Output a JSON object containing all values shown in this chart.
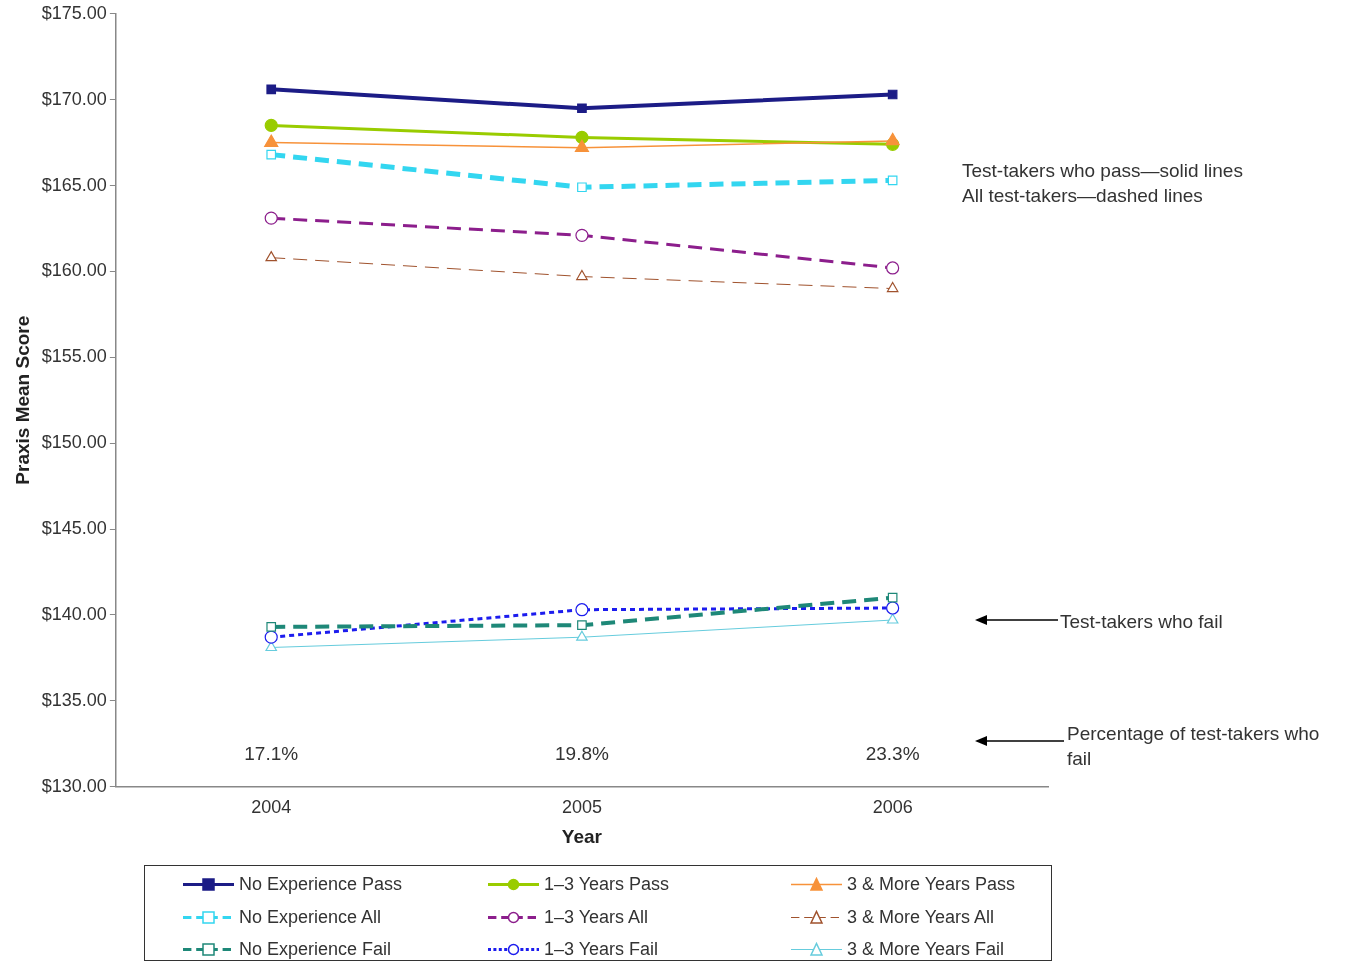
{
  "chart_data": {
    "type": "line",
    "xlabel": "Year",
    "ylabel": "Praxis Mean Score",
    "categories": [
      "2004",
      "2005",
      "2006"
    ],
    "ylim": [
      130,
      175
    ],
    "yticks": [
      {
        "value": 130,
        "label": "$130.00"
      },
      {
        "value": 135,
        "label": "$135.00"
      },
      {
        "value": 140,
        "label": "$140.00"
      },
      {
        "value": 145,
        "label": "$145.00"
      },
      {
        "value": 150,
        "label": "$150.00"
      },
      {
        "value": 155,
        "label": "$155.00"
      },
      {
        "value": 160,
        "label": "$160.00"
      },
      {
        "value": 165,
        "label": "$165.00"
      },
      {
        "value": 170,
        "label": "$170.00"
      },
      {
        "value": 175,
        "label": "$175.00"
      }
    ],
    "grid": false,
    "legend": "bottom",
    "series": [
      {
        "name": "No Experience Pass",
        "color": "#1c1c86",
        "marker": "square",
        "line_style": "solid",
        "values": [
          170.6,
          169.5,
          170.3
        ]
      },
      {
        "name": "1–3 Years Pass",
        "color": "#99cc00",
        "marker": "circle",
        "line_style": "solid",
        "values": [
          168.5,
          167.8,
          167.4
        ]
      },
      {
        "name": "3 & More Years Pass",
        "color": "#f7923a",
        "marker": "triangle",
        "line_style": "solid",
        "values": [
          167.5,
          167.2,
          167.6
        ]
      },
      {
        "name": "No Experience All",
        "color": "#33d6f0",
        "marker": "square",
        "line_style": "dashed",
        "values": [
          166.8,
          164.9,
          165.3
        ]
      },
      {
        "name": "1–3 Years All",
        "color": "#8c1e8c",
        "marker": "circle",
        "line_style": "dashed",
        "values": [
          163.1,
          162.1,
          160.2
        ]
      },
      {
        "name": "3 & More Years All",
        "color": "#a0522d",
        "marker": "triangle",
        "line_style": "dashed",
        "values": [
          160.8,
          159.7,
          159.0
        ]
      },
      {
        "name": "No Experience Fail",
        "color": "#1e8878",
        "marker": "square",
        "line_style": "dashed",
        "values": [
          139.3,
          139.4,
          141.0
        ]
      },
      {
        "name": "1–3 Years Fail",
        "color": "#1c1cee",
        "marker": "circle",
        "line_style": "dotted",
        "values": [
          138.7,
          140.3,
          140.4
        ]
      },
      {
        "name": "3 & More Years Fail",
        "color": "#66ccdd",
        "marker": "triangle",
        "line_style": "solid",
        "values": [
          138.1,
          138.7,
          139.7
        ]
      }
    ],
    "annotations": [
      "17.1%",
      "19.8%",
      "23.3%",
      "Test-takers who pass—solid lines",
      "All test-takers—dashed lines",
      "Test-takers who fail",
      "Percentage of test-takers who fail"
    ]
  }
}
